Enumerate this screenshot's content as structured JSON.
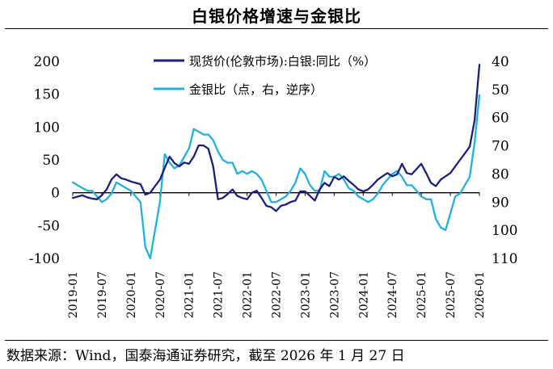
{
  "header": {
    "title": "白银价格增速与金银比"
  },
  "source": "数据来源：Wind，国泰海通证券研究，截至 2026 年 1 月 27 日",
  "colors": {
    "primary_series": "#1B1F80",
    "secondary_series": "#1FB2DF",
    "axis": "#000000"
  },
  "chart_data": {
    "type": "line",
    "title": "白银价格增速与金银比",
    "xlabel": "",
    "x_tick_labels": [
      "2019-01",
      "2019-07",
      "2020-01",
      "2020-07",
      "2021-01",
      "2021-07",
      "2022-01",
      "2022-07",
      "2023-01",
      "2023-07",
      "2024-01",
      "2024-07",
      "2025-01",
      "2025-07",
      "2026-01"
    ],
    "x": [
      "2019-01",
      "2019-02",
      "2019-03",
      "2019-04",
      "2019-05",
      "2019-06",
      "2019-07",
      "2019-08",
      "2019-09",
      "2019-10",
      "2019-11",
      "2019-12",
      "2020-01",
      "2020-02",
      "2020-03",
      "2020-04",
      "2020-05",
      "2020-06",
      "2020-07",
      "2020-08",
      "2020-09",
      "2020-10",
      "2020-11",
      "2020-12",
      "2021-01",
      "2021-02",
      "2021-03",
      "2021-04",
      "2021-05",
      "2021-06",
      "2021-07",
      "2021-08",
      "2021-09",
      "2021-10",
      "2021-11",
      "2021-12",
      "2022-01",
      "2022-02",
      "2022-03",
      "2022-04",
      "2022-05",
      "2022-06",
      "2022-07",
      "2022-08",
      "2022-09",
      "2022-10",
      "2022-11",
      "2022-12",
      "2023-01",
      "2023-02",
      "2023-03",
      "2023-04",
      "2023-05",
      "2023-06",
      "2023-07",
      "2023-08",
      "2023-09",
      "2023-10",
      "2023-11",
      "2023-12",
      "2024-01",
      "2024-02",
      "2024-03",
      "2024-04",
      "2024-05",
      "2024-06",
      "2024-07",
      "2024-08",
      "2024-09",
      "2024-10",
      "2024-11",
      "2024-12",
      "2025-01",
      "2025-02",
      "2025-03",
      "2025-04",
      "2025-05",
      "2025-06",
      "2025-07",
      "2025-08",
      "2025-09",
      "2025-10",
      "2025-11",
      "2025-12",
      "2026-01"
    ],
    "y_left": {
      "label": "现货价(伦敦市场):白银:同比（%）",
      "ylim": [
        -100,
        200
      ],
      "ticks": [
        -100,
        -50,
        0,
        50,
        100,
        150,
        200
      ]
    },
    "y_right": {
      "label": "金银比（点，右，逆序）",
      "ylim": [
        40,
        110
      ],
      "inverted": true,
      "ticks": [
        40,
        50,
        60,
        70,
        80,
        90,
        100,
        110
      ]
    },
    "series": [
      {
        "name": "现货价(伦敦市场):白银:同比（%）",
        "axis": "left",
        "color": "#1B1F80",
        "values": [
          -8,
          -6,
          -4,
          -7,
          -9,
          -10,
          -4,
          5,
          20,
          28,
          22,
          20,
          17,
          15,
          13,
          -3,
          0,
          10,
          20,
          38,
          55,
          45,
          40,
          46,
          44,
          55,
          72,
          72,
          67,
          40,
          -10,
          -8,
          -2,
          5,
          -5,
          -8,
          -10,
          0,
          3,
          -8,
          -20,
          -22,
          -28,
          -20,
          -18,
          -14,
          -12,
          2,
          2,
          -5,
          -12,
          5,
          15,
          10,
          24,
          20,
          25,
          18,
          12,
          5,
          2,
          5,
          12,
          20,
          25,
          30,
          25,
          28,
          44,
          30,
          28,
          36,
          44,
          30,
          15,
          10,
          20,
          25,
          30,
          40,
          50,
          60,
          70,
          110,
          195
        ]
      },
      {
        "name": "金银比（点，右，逆序）",
        "axis": "right",
        "color": "#1FB2DF",
        "values": [
          83,
          84,
          85,
          86,
          86,
          88,
          90,
          89,
          87,
          83,
          84,
          85,
          86,
          88,
          90,
          106,
          110,
          100,
          90,
          73,
          76,
          78,
          77,
          74,
          71,
          64,
          65,
          66,
          66,
          68,
          72,
          75,
          76,
          76,
          80,
          79,
          80,
          79,
          80,
          82,
          86,
          90,
          90,
          89,
          88,
          86,
          83,
          78,
          80,
          84,
          86,
          86,
          79,
          81,
          81,
          80,
          82,
          85,
          86,
          88,
          89,
          90,
          89,
          87,
          84,
          82,
          80,
          79,
          81,
          84,
          84,
          86,
          88,
          89,
          89,
          96,
          99,
          100,
          94,
          88,
          87,
          84,
          81,
          69,
          52
        ]
      }
    ]
  }
}
